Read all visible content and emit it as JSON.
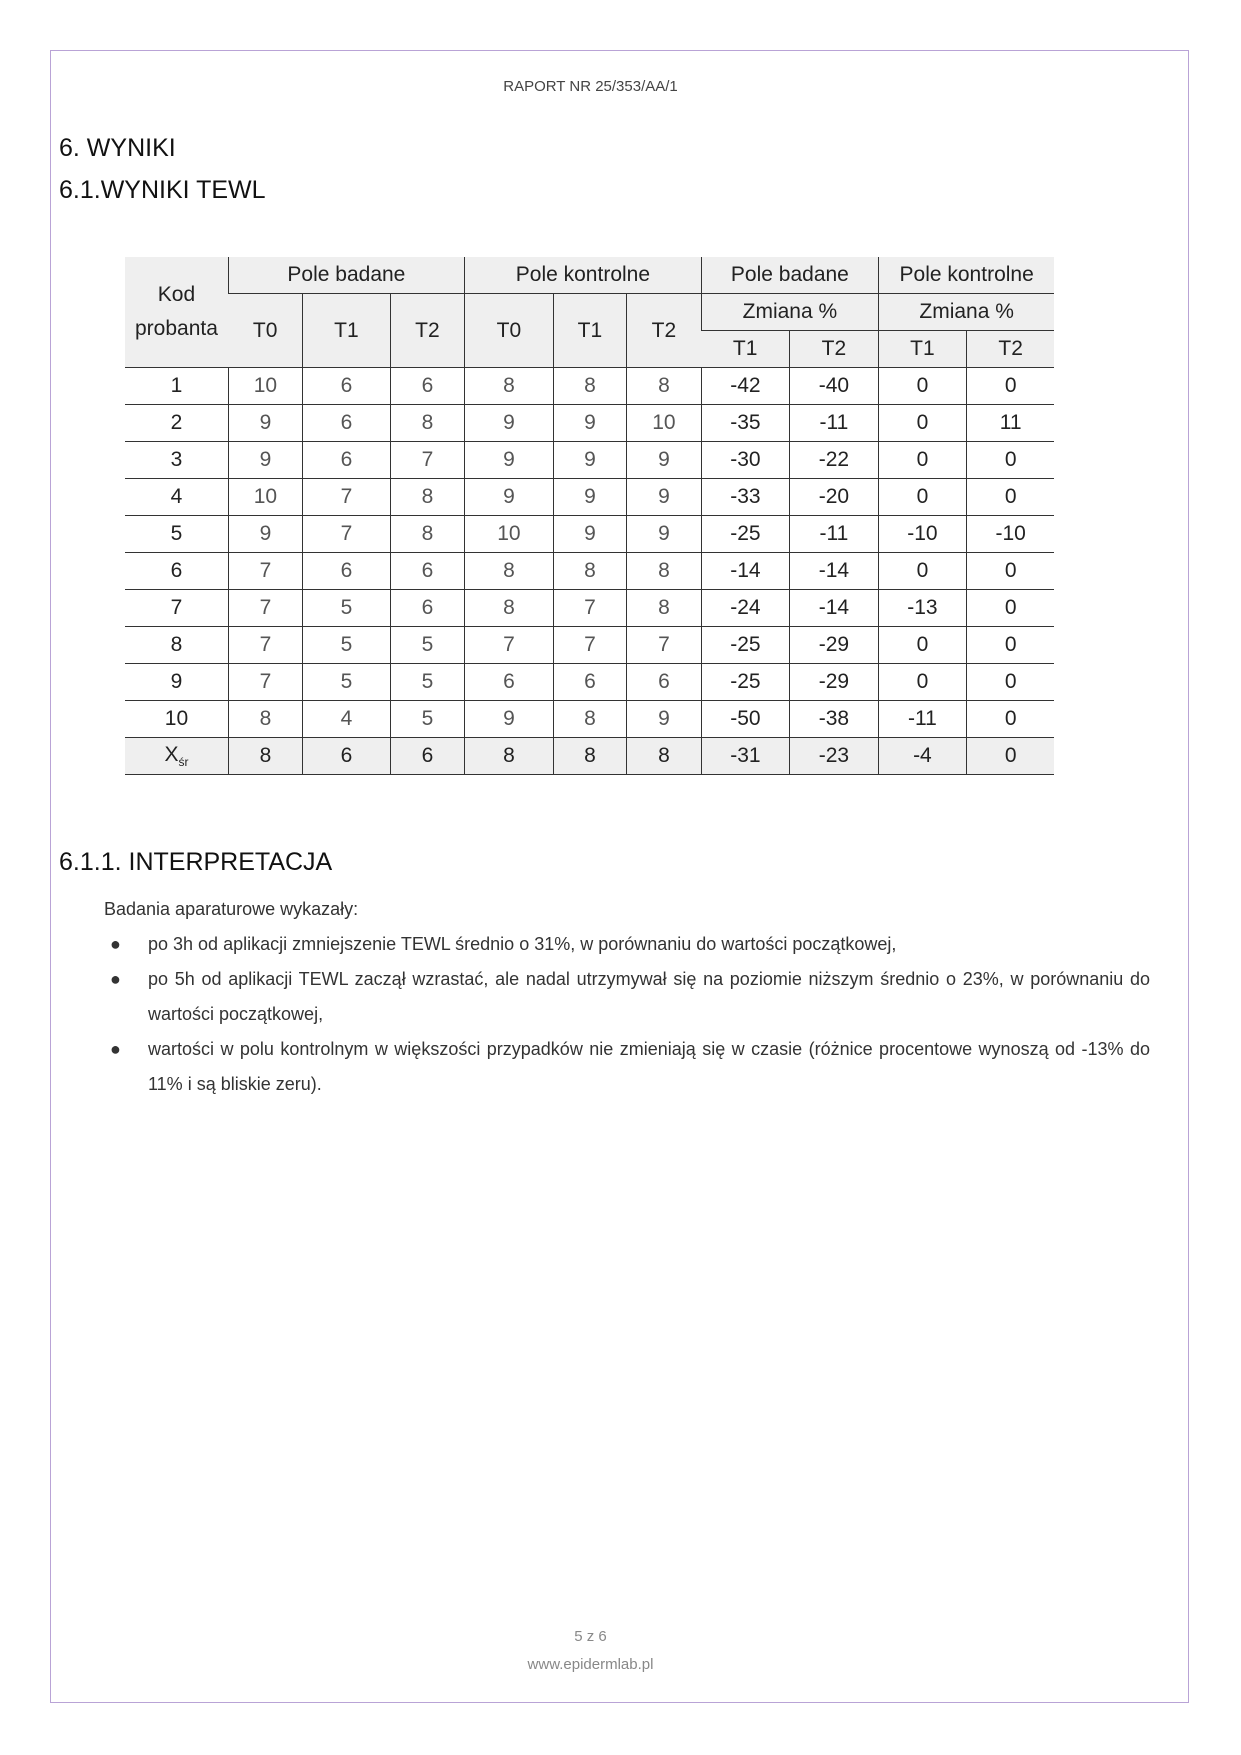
{
  "header": "RAPORT NR 25/353/AA/1",
  "section": "6.   WYNIKI",
  "subsection": "6.1.WYNIKI TEWL",
  "table": {
    "kod": "Kod probanta",
    "group1": "Pole badane",
    "group2": "Pole kontrolne",
    "group3": "Pole badane",
    "group4": "Pole kontrolne",
    "zmiana": "Zmiana %",
    "t0": "T0",
    "t1": "T1",
    "t2": "T2",
    "rows": [
      [
        "1",
        "10",
        "6",
        "6",
        "8",
        "8",
        "8",
        "-42",
        "-40",
        "0",
        "0"
      ],
      [
        "2",
        "9",
        "6",
        "8",
        "9",
        "9",
        "10",
        "-35",
        "-11",
        "0",
        "11"
      ],
      [
        "3",
        "9",
        "6",
        "7",
        "9",
        "9",
        "9",
        "-30",
        "-22",
        "0",
        "0"
      ],
      [
        "4",
        "10",
        "7",
        "8",
        "9",
        "9",
        "9",
        "-33",
        "-20",
        "0",
        "0"
      ],
      [
        "5",
        "9",
        "7",
        "8",
        "10",
        "9",
        "9",
        "-25",
        "-11",
        "-10",
        "-10"
      ],
      [
        "6",
        "7",
        "6",
        "6",
        "8",
        "8",
        "8",
        "-14",
        "-14",
        "0",
        "0"
      ],
      [
        "7",
        "7",
        "5",
        "6",
        "8",
        "7",
        "8",
        "-24",
        "-14",
        "-13",
        "0"
      ],
      [
        "8",
        "7",
        "5",
        "5",
        "7",
        "7",
        "7",
        "-25",
        "-29",
        "0",
        "0"
      ],
      [
        "9",
        "7",
        "5",
        "5",
        "6",
        "6",
        "6",
        "-25",
        "-29",
        "0",
        "0"
      ],
      [
        "10",
        "8",
        "4",
        "5",
        "9",
        "8",
        "9",
        "-50",
        "-38",
        "-11",
        "0"
      ]
    ],
    "mean_label": "X",
    "mean_sub": "śr",
    "mean": [
      "8",
      "6",
      "6",
      "8",
      "8",
      "8",
      "-31",
      "-23",
      "-4",
      "0"
    ]
  },
  "interp_heading": "6.1.1.   INTERPRETACJA",
  "intro": "Badania aparaturowe wykazały:",
  "bullets": [
    "po 3h od aplikacji zmniejszenie TEWL średnio o 31%, w porównaniu do wartości początkowej,",
    "po 5h od aplikacji TEWL zaczął wzrastać, ale nadal utrzymywał się na poziomie niższym średnio o 23%, w porównaniu do wartości początkowej,",
    "wartości w polu kontrolnym w większości przypadków nie zmieniają się w czasie (różnice procentowe wynoszą od -13% do 11% i są bliskie zeru)."
  ],
  "footer": {
    "page": "5 z 6",
    "url": "www.epidermlab.pl"
  }
}
